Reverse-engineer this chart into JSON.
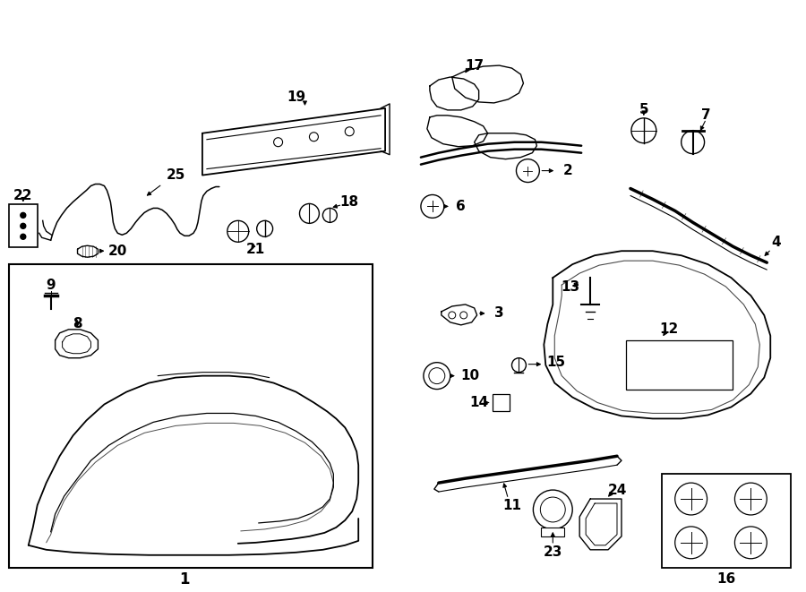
{
  "bg_color": "#ffffff",
  "line_color": "#000000",
  "text_color": "#000000",
  "fig_width": 9.0,
  "fig_height": 6.61,
  "image_b64": ""
}
